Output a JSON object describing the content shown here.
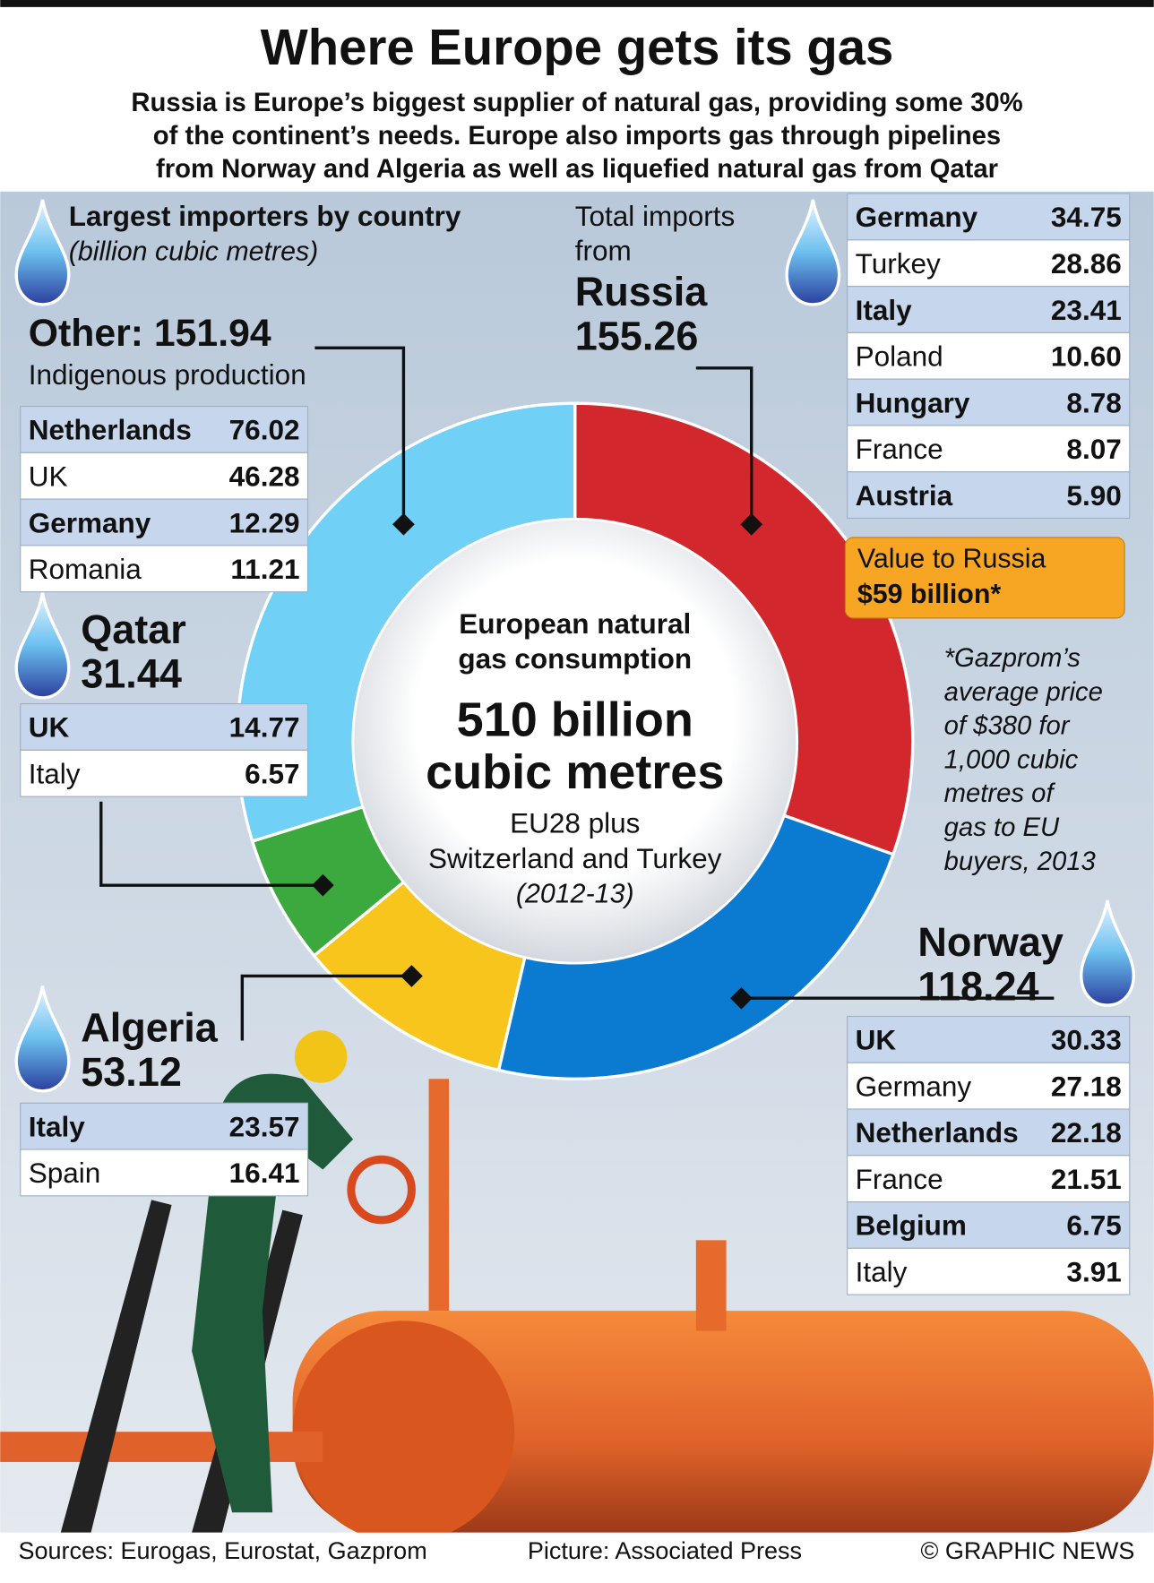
{
  "chart_data": {
    "type": "donut",
    "title": "Where Europe gets its gas",
    "subtitle": [
      "Russia is Europe’s biggest supplier of natural gas, providing some 30%",
      "of the continent’s needs. Europe also imports gas through pipelines",
      "from Norway and Algeria as well as liquefied natural gas from Qatar"
    ],
    "legend_heading": "Largest importers by country",
    "legend_unit": "(billion cubic metres)",
    "categories": [
      "Russia",
      "Norway",
      "Algeria",
      "Qatar",
      "Other:"
    ],
    "values": [
      155.26,
      118.24,
      53.12,
      31.44,
      151.94
    ],
    "colors": [
      "#d1272d",
      "#0b7bd2",
      "#f8c51c",
      "#3ca93f",
      "#70d0f5"
    ],
    "russia_caption": [
      "Total imports",
      "from"
    ],
    "other_caption": "Indigenous production",
    "breakdowns": [
      [
        {
          "name": "Germany",
          "value": "34.75"
        },
        {
          "name": "Turkey",
          "value": "28.86"
        },
        {
          "name": "Italy",
          "value": "23.41"
        },
        {
          "name": "Poland",
          "value": "10.60"
        },
        {
          "name": "Hungary",
          "value": "8.78"
        },
        {
          "name": "France",
          "value": "8.07"
        },
        {
          "name": "Austria",
          "value": "5.90"
        }
      ],
      [
        {
          "name": "UK",
          "value": "30.33"
        },
        {
          "name": "Germany",
          "value": "27.18"
        },
        {
          "name": "Netherlands",
          "value": "22.18"
        },
        {
          "name": "France",
          "value": "21.51"
        },
        {
          "name": "Belgium",
          "value": "6.75"
        },
        {
          "name": "Italy",
          "value": "3.91"
        }
      ],
      [
        {
          "name": "Italy",
          "value": "23.57"
        },
        {
          "name": "Spain",
          "value": "16.41"
        }
      ],
      [
        {
          "name": "UK",
          "value": "14.77"
        },
        {
          "name": "Italy",
          "value": "6.57"
        }
      ],
      [
        {
          "name": "Netherlands",
          "value": "76.02"
        },
        {
          "name": "UK",
          "value": "46.28"
        },
        {
          "name": "Germany",
          "value": "12.29"
        },
        {
          "name": "Romania",
          "value": "11.21"
        }
      ]
    ],
    "center_title": [
      "European natural",
      "gas consumption"
    ],
    "center_value": [
      "510 billion",
      "cubic metres"
    ],
    "center_sub": [
      "EU28 plus",
      "Switzerland and Turkey"
    ],
    "center_period": "(2012-13)",
    "value_box": {
      "label": "Value to Russia",
      "value": "$59 billion*"
    },
    "footnote": [
      "*Gazprom’s",
      "average price",
      "of $380 for",
      "1,000 cubic",
      "metres of",
      "gas to EU",
      "buyers, 2013"
    ],
    "sources": "Sources: Eurogas, Eurostat, Gazprom",
    "picture_credit": "Picture: Associated Press",
    "copyright": "© GRAPHIC NEWS"
  }
}
